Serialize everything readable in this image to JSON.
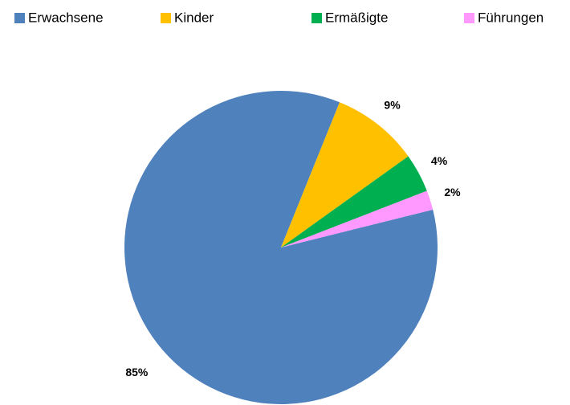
{
  "chart_data": {
    "type": "pie",
    "categories": [
      "Erwachsene",
      "Kinder",
      "Ermäßigte",
      "Führungen"
    ],
    "values": [
      85,
      9,
      4,
      2
    ],
    "value_labels": [
      "85%",
      "9%",
      "4%",
      "2%"
    ],
    "colors": [
      "#4f81bd",
      "#ffc000",
      "#00b050",
      "#ff99ff"
    ],
    "legend": "top"
  }
}
